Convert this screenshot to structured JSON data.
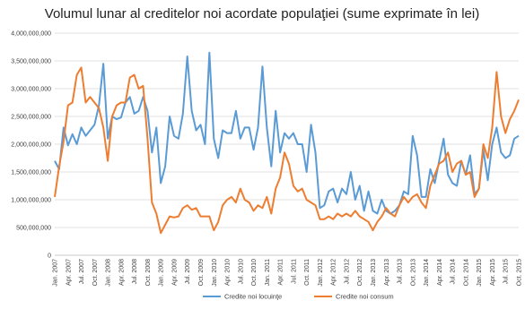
{
  "chart_data": {
    "type": "line",
    "title": "Volumul lunar al creditelor noi acordate populaţiei  (sume exprimate în lei)",
    "categories": [
      "Jan. 2007",
      null,
      null,
      "Apr. 2007",
      null,
      null,
      "Jul. 2007",
      null,
      null,
      "Oct. 2007",
      null,
      null,
      "Jan. 2008",
      null,
      null,
      "Apr. 2008",
      null,
      null,
      "Jul. 2008",
      null,
      null,
      "Oct. 2008",
      null,
      null,
      "Jan. 2009",
      null,
      null,
      "Apr. 2009",
      null,
      null,
      "Jul. 2009",
      null,
      null,
      "Oct. 2009",
      null,
      null,
      "Jan. 2010",
      null,
      null,
      "Apr. 2010",
      null,
      null,
      "Jul. 2010",
      null,
      null,
      "Oct. 2010",
      null,
      null,
      "Jan. 2011",
      null,
      null,
      "Apr. 2011",
      null,
      null,
      "Jul. 2011",
      null,
      null,
      "Oct. 2011",
      null,
      null,
      "Jan. 2012",
      null,
      null,
      "Apr. 2012",
      null,
      null,
      "Jul. 2012",
      null,
      null,
      "Oct. 2012",
      null,
      null,
      "Jan. 2013",
      null,
      null,
      "Apr. 2013",
      null,
      null,
      "Jul. 2013",
      null,
      null,
      "Oct. 2013",
      null,
      null,
      "Jan. 2014",
      null,
      null,
      "Apr. 2014",
      null,
      null,
      "Jul. 2014",
      null,
      null,
      "Oct. 2014",
      null,
      null,
      "Jan. 2015",
      null,
      null,
      "Apr. 2015",
      null,
      null,
      "Jul. 2015",
      null,
      null,
      "Oct. 2015"
    ],
    "series": [
      {
        "name": "Credite noi locuinţe",
        "color": "#5b9bd5",
        "values": [
          1700000000,
          1550000000,
          2300000000,
          1980000000,
          2180000000,
          2000000000,
          2300000000,
          2150000000,
          2250000000,
          2350000000,
          2700000000,
          3450000000,
          2100000000,
          2500000000,
          2450000000,
          2480000000,
          2750000000,
          2850000000,
          2550000000,
          2600000000,
          2850000000,
          2600000000,
          1850000000,
          2300000000,
          1300000000,
          1600000000,
          2500000000,
          2150000000,
          2100000000,
          2550000000,
          3580000000,
          2600000000,
          2250000000,
          2350000000,
          2000000000,
          3650000000,
          2100000000,
          1750000000,
          2250000000,
          2200000000,
          2200000000,
          2600000000,
          2100000000,
          2300000000,
          2300000000,
          1900000000,
          2300000000,
          3400000000,
          2300000000,
          1600000000,
          2600000000,
          1850000000,
          2200000000,
          2100000000,
          2200000000,
          2000000000,
          2000000000,
          1500000000,
          2350000000,
          1850000000,
          850000000,
          900000000,
          1150000000,
          1200000000,
          950000000,
          1200000000,
          1100000000,
          1500000000,
          1000000000,
          1250000000,
          800000000,
          1150000000,
          800000000,
          750000000,
          1000000000,
          800000000,
          750000000,
          800000000,
          900000000,
          1150000000,
          1100000000,
          2150000000,
          1800000000,
          1050000000,
          1050000000,
          1550000000,
          1300000000,
          1700000000,
          2100000000,
          1450000000,
          1300000000,
          1250000000,
          1700000000,
          1450000000,
          1800000000,
          1100000000,
          1200000000,
          1900000000,
          1350000000,
          2000000000,
          2300000000,
          1850000000,
          1750000000,
          1800000000,
          2100000000,
          2150000000
        ]
      },
      {
        "name": "Credite noi consum",
        "color": "#ed7d31",
        "values": [
          1050000000,
          1600000000,
          2050000000,
          2700000000,
          2750000000,
          3250000000,
          3380000000,
          2750000000,
          2850000000,
          2750000000,
          2650000000,
          2300000000,
          1700000000,
          2500000000,
          2700000000,
          2750000000,
          2750000000,
          3200000000,
          3250000000,
          3000000000,
          3050000000,
          2100000000,
          950000000,
          750000000,
          400000000,
          550000000,
          700000000,
          680000000,
          700000000,
          850000000,
          900000000,
          820000000,
          850000000,
          700000000,
          700000000,
          700000000,
          450000000,
          600000000,
          900000000,
          1000000000,
          1050000000,
          950000000,
          1200000000,
          1000000000,
          950000000,
          800000000,
          900000000,
          850000000,
          1050000000,
          750000000,
          1200000000,
          1400000000,
          1850000000,
          1650000000,
          1250000000,
          1150000000,
          1200000000,
          1000000000,
          950000000,
          900000000,
          650000000,
          650000000,
          700000000,
          650000000,
          750000000,
          700000000,
          750000000,
          700000000,
          800000000,
          700000000,
          650000000,
          600000000,
          450000000,
          600000000,
          700000000,
          850000000,
          750000000,
          700000000,
          900000000,
          1050000000,
          950000000,
          1050000000,
          1100000000,
          950000000,
          850000000,
          1250000000,
          1450000000,
          1650000000,
          1700000000,
          1850000000,
          1500000000,
          1650000000,
          1700000000,
          1450000000,
          1500000000,
          1050000000,
          1200000000,
          2000000000,
          1750000000,
          2300000000,
          3300000000,
          2500000000,
          2200000000,
          2450000000,
          2600000000,
          2800000000
        ]
      }
    ],
    "ylim": [
      0,
      4000000000
    ],
    "yticks": [
      {
        "value": 0,
        "label": "0"
      },
      {
        "value": 500000000,
        "label": "500,000,000"
      },
      {
        "value": 1000000000,
        "label": "1,000,000,000"
      },
      {
        "value": 1500000000,
        "label": "1,500,000,000"
      },
      {
        "value": 2000000000,
        "label": "2,000,000,000"
      },
      {
        "value": 2500000000,
        "label": "2,500,000,000"
      },
      {
        "value": 3000000000,
        "label": "3,000,000,000"
      },
      {
        "value": 3500000000,
        "label": "3,500,000,000"
      },
      {
        "value": 4000000000,
        "label": "4,000,000,000"
      }
    ],
    "grid": true,
    "legend": "bottom"
  }
}
